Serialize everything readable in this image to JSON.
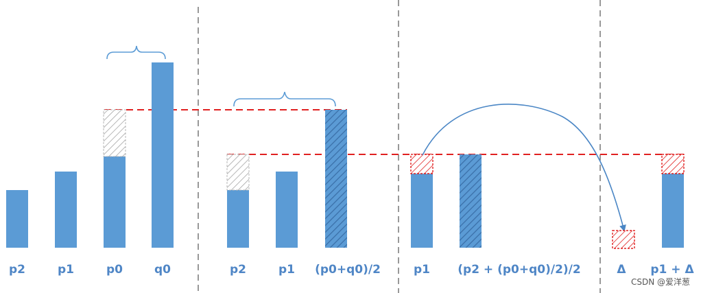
{
  "colors": {
    "bar": "#5b9bd5",
    "bar_hatch": "#4a86c5",
    "red": "#e02020",
    "divider": "#7f7f7f",
    "label": "#4f86c6",
    "gray_hatch": "#9a9a9a"
  },
  "panel1": {
    "labels": [
      "p2",
      "p1",
      "p0",
      "q0"
    ]
  },
  "panel2": {
    "labels": [
      "p2",
      "p1",
      "(p0+q0)/2"
    ]
  },
  "panel3": {
    "labels": [
      "p1",
      "(p2 + (p0+q0)/2)/2"
    ]
  },
  "panel4": {
    "labels": [
      "Δ",
      "p1 + Δ"
    ]
  },
  "watermark": "CSDN @爱洋葱"
}
